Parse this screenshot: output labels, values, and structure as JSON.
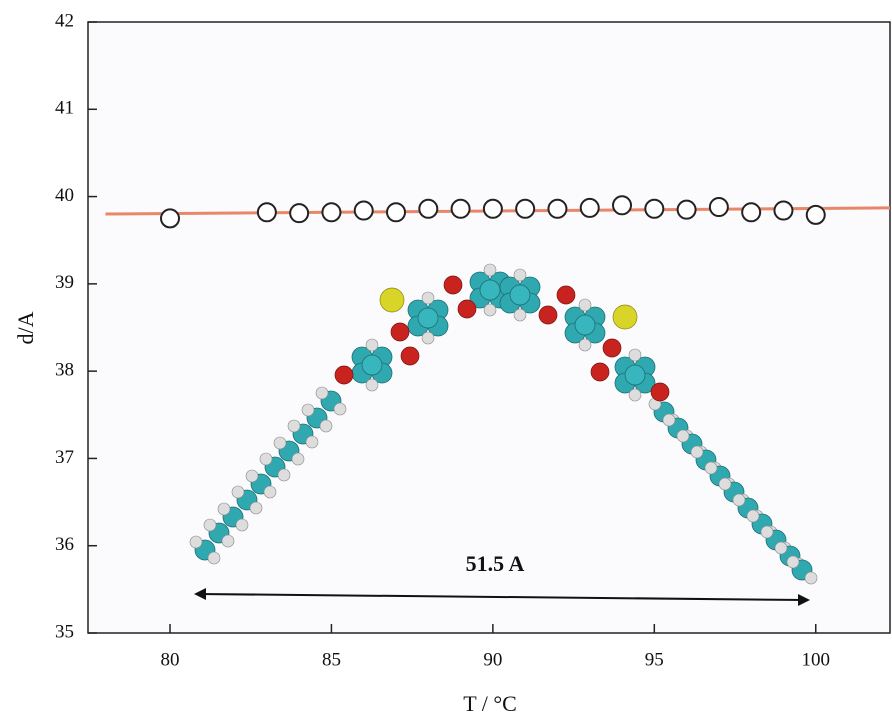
{
  "chart_data": {
    "type": "scatter",
    "x_label": "T / °C",
    "y_label": "d/A",
    "annotation": "51.5 A",
    "xlim": [
      77.46,
      102.3
    ],
    "ylim": [
      35,
      42
    ],
    "xticks": [
      80,
      85,
      90,
      95,
      100
    ],
    "yticks": [
      35,
      36,
      37,
      38,
      39,
      40,
      41,
      42
    ],
    "series": [
      {
        "color": "#222222",
        "x": [
          80,
          83,
          84,
          85,
          86,
          87,
          88,
          89,
          90,
          91,
          92,
          93,
          94,
          95,
          96,
          97,
          98,
          99,
          100
        ],
        "values": [
          39.75,
          39.82,
          39.81,
          39.82,
          39.84,
          39.82,
          39.86,
          39.86,
          39.86,
          39.86,
          39.86,
          39.87,
          39.9,
          39.86,
          39.85,
          39.88,
          39.82,
          39.84,
          39.79
        ]
      }
    ],
    "fit": {
      "color": "#e8866a",
      "x": [
        78,
        102.3
      ],
      "values": [
        39.8,
        39.87
      ]
    }
  }
}
